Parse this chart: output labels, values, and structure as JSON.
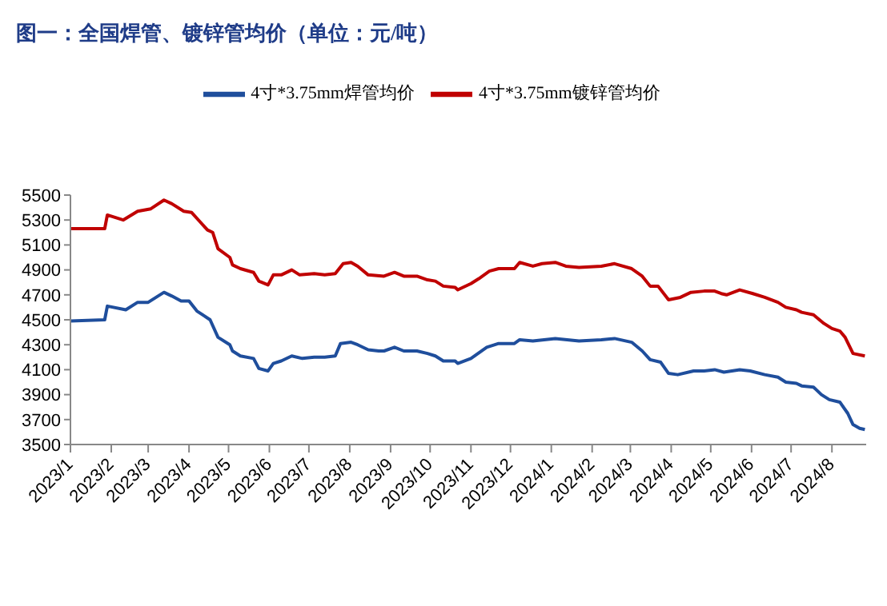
{
  "chart_data": {
    "type": "line",
    "title": "图一：全国焊管、镀锌管均价（单位：元/吨）",
    "legend": "top",
    "xlim": [
      "2023-01-01",
      "2024-08-27"
    ],
    "xticks": [
      {
        "value": "2023-01-01",
        "label": "2023/1"
      },
      {
        "value": "2023-02-01",
        "label": "2023/2"
      },
      {
        "value": "2023-03-01",
        "label": "2023/3"
      },
      {
        "value": "2023-04-01",
        "label": "2023/4"
      },
      {
        "value": "2023-05-01",
        "label": "2023/5"
      },
      {
        "value": "2023-06-01",
        "label": "2023/6"
      },
      {
        "value": "2023-07-01",
        "label": "2023/7"
      },
      {
        "value": "2023-08-01",
        "label": "2023/8"
      },
      {
        "value": "2023-09-01",
        "label": "2023/9"
      },
      {
        "value": "2023-10-01",
        "label": "2023/10"
      },
      {
        "value": "2023-11-01",
        "label": "2023/11"
      },
      {
        "value": "2023-12-01",
        "label": "2023/12"
      },
      {
        "value": "2024-01-01",
        "label": "2024/1"
      },
      {
        "value": "2024-02-01",
        "label": "2024/2"
      },
      {
        "value": "2024-03-01",
        "label": "2024/3"
      },
      {
        "value": "2024-04-01",
        "label": "2024/4"
      },
      {
        "value": "2024-05-01",
        "label": "2024/5"
      },
      {
        "value": "2024-06-01",
        "label": "2024/6"
      },
      {
        "value": "2024-07-01",
        "label": "2024/7"
      },
      {
        "value": "2024-08-01",
        "label": "2024/8"
      }
    ],
    "ylim": [
      3500,
      5500
    ],
    "yticks": [
      3500,
      3700,
      3900,
      4100,
      4300,
      4500,
      4700,
      4900,
      5100,
      5300,
      5500
    ],
    "series": [
      {
        "name": "4寸*3.75mm焊管均价",
        "color": "#1f4e9c",
        "x": [
          "2023-01-01",
          "2023-01-27",
          "2023-01-29",
          "2023-02-12",
          "2023-02-21",
          "2023-03-01",
          "2023-03-07",
          "2023-03-13",
          "2023-03-19",
          "2023-03-26",
          "2023-04-01",
          "2023-04-07",
          "2023-04-17",
          "2023-04-23",
          "2023-05-02",
          "2023-05-04",
          "2023-05-10",
          "2023-05-20",
          "2023-05-24",
          "2023-05-31",
          "2023-06-04",
          "2023-06-10",
          "2023-06-18",
          "2023-06-26",
          "2023-07-05",
          "2023-07-13",
          "2023-07-21",
          "2023-07-25",
          "2023-08-02",
          "2023-08-07",
          "2023-08-15",
          "2023-08-23",
          "2023-08-27",
          "2023-09-04",
          "2023-09-11",
          "2023-09-21",
          "2023-09-29",
          "2023-10-05",
          "2023-10-11",
          "2023-10-20",
          "2023-10-22",
          "2023-11-01",
          "2023-11-13",
          "2023-11-22",
          "2023-12-04",
          "2023-12-08",
          "2023-12-18",
          "2024-01-04",
          "2024-01-22",
          "2024-02-08",
          "2024-02-18",
          "2024-03-02",
          "2024-03-10",
          "2024-03-16",
          "2024-03-24",
          "2024-03-30",
          "2024-04-06",
          "2024-04-18",
          "2024-04-26",
          "2024-05-04",
          "2024-05-11",
          "2024-05-17",
          "2024-05-23",
          "2024-05-31",
          "2024-06-11",
          "2024-06-21",
          "2024-06-27",
          "2024-07-05",
          "2024-07-09",
          "2024-07-18",
          "2024-07-24",
          "2024-07-30",
          "2024-08-07",
          "2024-08-13",
          "2024-08-17",
          "2024-08-22",
          "2024-08-26"
        ],
        "values": [
          4490,
          4500,
          4610,
          4580,
          4640,
          4640,
          4680,
          4720,
          4690,
          4650,
          4650,
          4570,
          4500,
          4360,
          4300,
          4250,
          4210,
          4190,
          4110,
          4090,
          4150,
          4170,
          4210,
          4190,
          4200,
          4200,
          4210,
          4310,
          4320,
          4300,
          4260,
          4250,
          4250,
          4280,
          4250,
          4250,
          4230,
          4210,
          4170,
          4170,
          4150,
          4190,
          4280,
          4310,
          4310,
          4340,
          4330,
          4350,
          4330,
          4340,
          4350,
          4320,
          4250,
          4180,
          4160,
          4070,
          4060,
          4090,
          4090,
          4100,
          4080,
          4090,
          4100,
          4090,
          4060,
          4040,
          4000,
          3990,
          3970,
          3960,
          3900,
          3860,
          3840,
          3750,
          3660,
          3630,
          3620
        ]
      },
      {
        "name": "4寸*3.75mm镀锌管均价",
        "color": "#c00000",
        "x": [
          "2023-01-01",
          "2023-01-27",
          "2023-01-29",
          "2023-02-10",
          "2023-02-21",
          "2023-03-03",
          "2023-03-13",
          "2023-03-19",
          "2023-03-28",
          "2023-04-03",
          "2023-04-09",
          "2023-04-15",
          "2023-04-19",
          "2023-04-23",
          "2023-05-02",
          "2023-05-04",
          "2023-05-10",
          "2023-05-20",
          "2023-05-24",
          "2023-05-31",
          "2023-06-04",
          "2023-06-10",
          "2023-06-18",
          "2023-06-24",
          "2023-07-05",
          "2023-07-13",
          "2023-07-21",
          "2023-07-27",
          "2023-08-02",
          "2023-08-07",
          "2023-08-15",
          "2023-08-27",
          "2023-09-04",
          "2023-09-11",
          "2023-09-21",
          "2023-09-29",
          "2023-10-05",
          "2023-10-11",
          "2023-10-20",
          "2023-10-22",
          "2023-11-01",
          "2023-11-07",
          "2023-11-15",
          "2023-11-22",
          "2023-12-04",
          "2023-12-08",
          "2023-12-18",
          "2023-12-25",
          "2024-01-04",
          "2024-01-12",
          "2024-01-22",
          "2024-02-08",
          "2024-02-18",
          "2024-03-02",
          "2024-03-10",
          "2024-03-16",
          "2024-03-22",
          "2024-03-30",
          "2024-04-08",
          "2024-04-16",
          "2024-04-26",
          "2024-05-04",
          "2024-05-09",
          "2024-05-13",
          "2024-05-23",
          "2024-06-02",
          "2024-06-11",
          "2024-06-21",
          "2024-06-27",
          "2024-07-05",
          "2024-07-09",
          "2024-07-18",
          "2024-07-26",
          "2024-08-01",
          "2024-08-07",
          "2024-08-11",
          "2024-08-17",
          "2024-08-26"
        ],
        "values": [
          5230,
          5230,
          5340,
          5300,
          5370,
          5390,
          5460,
          5430,
          5370,
          5360,
          5290,
          5220,
          5200,
          5070,
          5000,
          4940,
          4910,
          4880,
          4810,
          4780,
          4860,
          4860,
          4900,
          4860,
          4870,
          4860,
          4870,
          4950,
          4960,
          4930,
          4860,
          4850,
          4880,
          4850,
          4850,
          4820,
          4810,
          4770,
          4760,
          4740,
          4790,
          4830,
          4890,
          4910,
          4910,
          4960,
          4930,
          4950,
          4960,
          4930,
          4920,
          4930,
          4950,
          4910,
          4850,
          4770,
          4770,
          4660,
          4680,
          4720,
          4730,
          4730,
          4710,
          4700,
          4740,
          4710,
          4680,
          4640,
          4600,
          4580,
          4560,
          4540,
          4470,
          4430,
          4410,
          4360,
          4230,
          4210
        ]
      }
    ]
  }
}
